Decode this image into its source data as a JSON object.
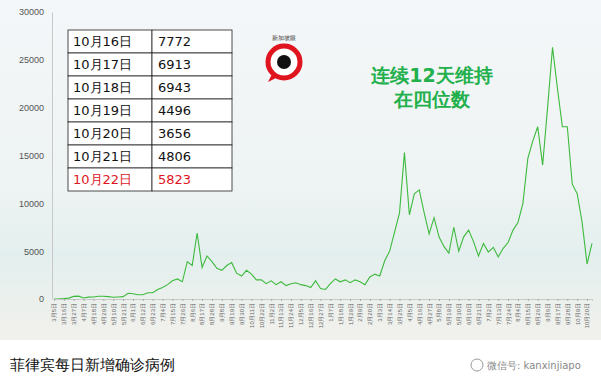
{
  "chart_data": {
    "type": "line",
    "title": "菲律宾每日新增确诊病例",
    "annotation": [
      "连续12天维持",
      "在四位数"
    ],
    "logo": "新加坡眼",
    "source": "微信号: kanxinjiapo",
    "color": "#3dba3d",
    "grid": false,
    "ylim": [
      0,
      30000
    ],
    "yticks": [
      0,
      5000,
      10000,
      15000,
      20000,
      25000,
      30000
    ],
    "table": [
      {
        "date": "10月16日",
        "value": 7772
      },
      {
        "date": "10月17日",
        "value": 6913
      },
      {
        "date": "10月18日",
        "value": 6943
      },
      {
        "date": "10月19日",
        "value": 4496
      },
      {
        "date": "10月20日",
        "value": 3656
      },
      {
        "date": "10月21日",
        "value": 4806
      },
      {
        "date": "10月22日",
        "value": 5823
      }
    ],
    "categories": [
      "3月5日",
      null,
      "3月16日",
      null,
      "3月27日",
      null,
      "4月7日",
      null,
      "4月18日",
      null,
      "4月29日",
      null,
      "5月10日",
      null,
      "5月21日",
      null,
      "6月1日",
      null,
      "6月12日",
      null,
      "6月23日",
      null,
      "7月4日",
      null,
      "7月15日",
      null,
      "7月26日",
      null,
      "8月6日",
      null,
      "8月17日",
      null,
      "8月28日",
      null,
      "9月8日",
      null,
      "9月19日",
      null,
      "9月30日",
      null,
      "10月11日",
      null,
      "10月22日",
      null,
      "11月2日",
      null,
      "11月13日",
      null,
      "11月24日",
      null,
      "12月5日",
      null,
      "12月16日",
      null,
      "12月27日",
      null,
      "1月7日",
      null,
      "1月18日",
      null,
      "1月29日",
      null,
      "2月9日",
      null,
      "2月20日",
      null,
      "3月3日",
      null,
      "3月14日",
      null,
      "3月25日",
      null,
      "4月5日",
      null,
      "4月16日",
      null,
      "4月27日",
      null,
      "5月8日",
      null,
      "5月19日",
      null,
      "5月30日",
      null,
      "6月10日",
      null,
      "6月21日",
      null,
      "7月2日",
      null,
      "7月13日",
      null,
      "7月24日",
      null,
      "8月4日",
      null,
      "8月15日",
      null,
      "8月26日",
      null,
      "9月6日",
      null,
      "9月17日",
      null,
      "9月28日",
      null,
      "10月9日",
      null,
      "10月20日",
      null
    ],
    "values": [
      0,
      10,
      40,
      90,
      270,
      300,
      100,
      200,
      210,
      280,
      280,
      250,
      180,
      210,
      250,
      600,
      550,
      450,
      450,
      650,
      650,
      1000,
      1200,
      1500,
      1900,
      2100,
      1800,
      3900,
      3500,
      6900,
      3300,
      4500,
      3900,
      3200,
      3000,
      3500,
      3800,
      2700,
      2400,
      3000,
      2600,
      2000,
      2000,
      1600,
      1900,
      1500,
      1800,
      1400,
      1600,
      1700,
      1500,
      1400,
      1200,
      1900,
      1100,
      1000,
      1600,
      2100,
      1800,
      2000,
      1700,
      2000,
      1800,
      1500,
      2300,
      2600,
      2400,
      4000,
      5000,
      7000,
      9000,
      15300,
      8800,
      11000,
      11400,
      9000,
      6800,
      8500,
      6500,
      5500,
      4800,
      7500,
      5000,
      6500,
      7200,
      6000,
      4500,
      5800,
      4900,
      5400,
      4400,
      5300,
      5900,
      7200,
      8000,
      10000,
      14700,
      16500,
      18000,
      14000,
      20000,
      26300,
      22000,
      18000,
      18000,
      12000,
      11000,
      8000,
      3656,
      5823
    ]
  }
}
